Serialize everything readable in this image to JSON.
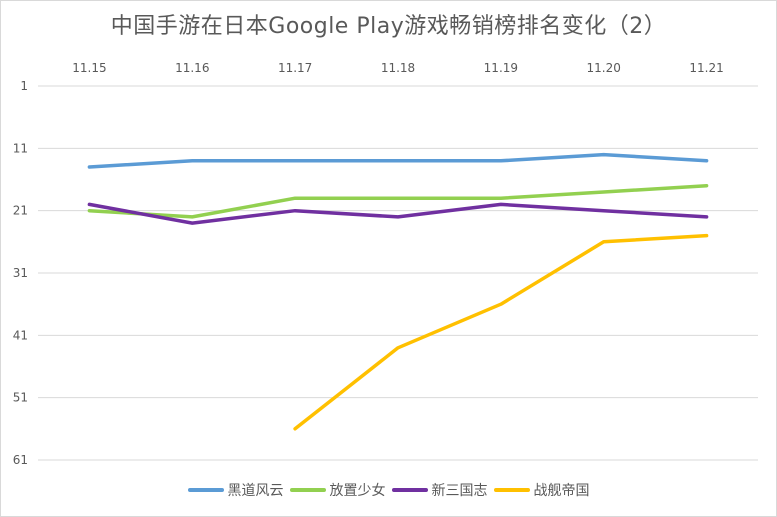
{
  "chart_data": {
    "type": "line",
    "title": "中国手游在日本Google Play游戏畅销榜排名变化（2）",
    "xlabel": "",
    "ylabel": "",
    "categories": [
      "11.15",
      "11.16",
      "11.17",
      "11.18",
      "11.19",
      "11.20",
      "11.21"
    ],
    "y_ticks": [
      "1",
      "11",
      "21",
      "31",
      "41",
      "51",
      "61"
    ],
    "ylim": [
      1,
      61
    ],
    "y_reversed": true,
    "x_axis_position": "top",
    "grid": true,
    "legend_position": "bottom",
    "series": [
      {
        "name": "黑道风云",
        "color": "#5B9BD5",
        "values": [
          14,
          13,
          13,
          13,
          13,
          12,
          13
        ]
      },
      {
        "name": "放置少女",
        "color": "#92D050",
        "values": [
          21,
          22,
          19,
          19,
          19,
          18,
          17
        ]
      },
      {
        "name": "新三国志",
        "color": "#7030A0",
        "values": [
          20,
          23,
          21,
          22,
          20,
          21,
          22
        ]
      },
      {
        "name": "战舰帝国",
        "color": "#FFC000",
        "values": [
          null,
          null,
          56,
          43,
          36,
          26,
          25
        ]
      }
    ]
  }
}
